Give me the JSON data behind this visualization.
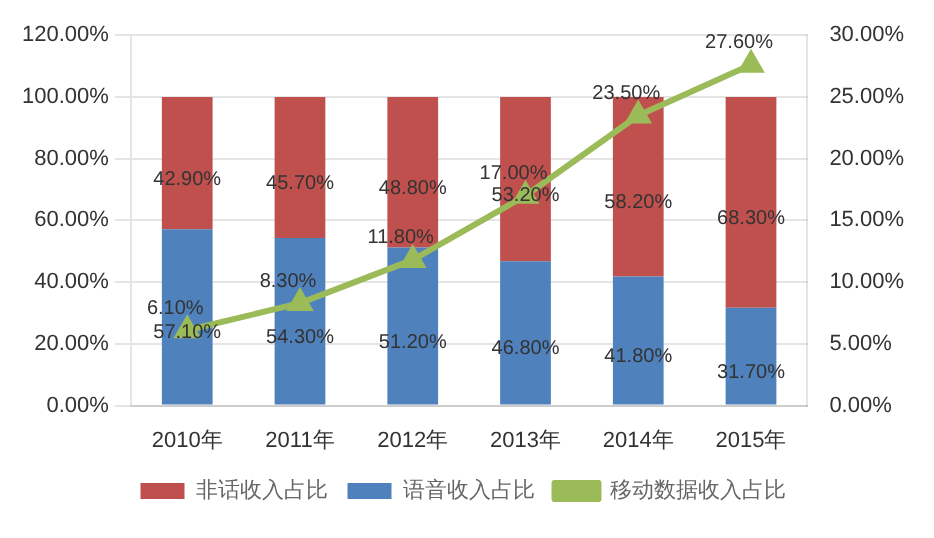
{
  "chart_data": {
    "type": "bar",
    "stacked": true,
    "categories": [
      "2010年",
      "2011年",
      "2012年",
      "2013年",
      "2014年",
      "2015年"
    ],
    "series": [
      {
        "name": "语音收入占比",
        "color": "#4f81bd",
        "values": [
          57.1,
          54.3,
          51.2,
          46.8,
          41.8,
          31.7
        ],
        "value_labels": [
          "57.10%",
          "54.30%",
          "51.20%",
          "46.80%",
          "41.80%",
          "31.70%"
        ]
      },
      {
        "name": "非话收入占比",
        "color": "#c0504d",
        "values": [
          42.9,
          45.7,
          48.8,
          53.2,
          58.2,
          68.3
        ],
        "value_labels": [
          "42.90%",
          "45.70%",
          "48.80%",
          "53.20%",
          "58.20%",
          "68.30%"
        ]
      },
      {
        "name": "移动数据收入占比",
        "type": "line",
        "axis": "y2",
        "color": "#9bbb59",
        "marker": "triangle",
        "values": [
          6.1,
          8.3,
          11.8,
          17.0,
          23.5,
          27.6
        ],
        "value_labels": [
          "6.10%",
          "8.30%",
          "11.80%",
          "17.00%",
          "23.50%",
          "27.60%"
        ]
      }
    ],
    "ylim": [
      0,
      120
    ],
    "yticks": [
      {
        "value": 0,
        "label": "0.00%"
      },
      {
        "value": 20,
        "label": "20.00%"
      },
      {
        "value": 40,
        "label": "40.00%"
      },
      {
        "value": 60,
        "label": "60.00%"
      },
      {
        "value": 80,
        "label": "80.00%"
      },
      {
        "value": 100,
        "label": "100.00%"
      },
      {
        "value": 120,
        "label": "120.00%"
      }
    ],
    "y2lim": [
      0,
      30
    ],
    "y2ticks": [
      {
        "value": 0,
        "label": "0.00%"
      },
      {
        "value": 5,
        "label": "5.00%"
      },
      {
        "value": 10,
        "label": "10.00%"
      },
      {
        "value": 15,
        "label": "15.00%"
      },
      {
        "value": 20,
        "label": "20.00%"
      },
      {
        "value": 25,
        "label": "25.00%"
      },
      {
        "value": 30,
        "label": "30.00%"
      }
    ],
    "grid": "y",
    "legend": "bottom"
  }
}
